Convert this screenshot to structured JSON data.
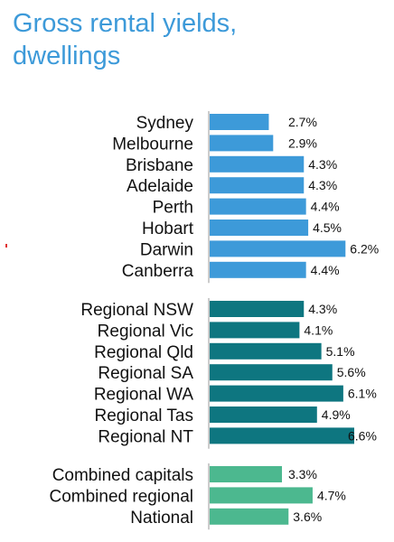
{
  "title_lines": [
    "Gross rental yields,",
    "dwellings"
  ],
  "colors": {
    "title": "#3d9ad9",
    "capitals": "#3d9ad9",
    "regional": "#0e7680",
    "combined": "#4cb88f",
    "axis": "#999999"
  },
  "chart_data": {
    "type": "bar",
    "orientation": "horizontal",
    "title": "Gross rental yields, dwellings",
    "xlabel": "",
    "ylabel": "",
    "unit": "%",
    "xlim": [
      0,
      6.6
    ],
    "grid": false,
    "legend": "none",
    "groups": [
      {
        "color_key": "capitals",
        "categories": [
          "Sydney",
          "Melbourne",
          "Brisbane",
          "Adelaide",
          "Perth",
          "Hobart",
          "Darwin",
          "Canberra"
        ],
        "values": [
          2.7,
          2.9,
          4.3,
          4.3,
          4.4,
          4.5,
          6.2,
          4.4
        ],
        "labels": [
          "2.7%",
          "2.9%",
          "4.3%",
          "4.3%",
          "4.4%",
          "4.5%",
          "6.2%",
          "4.4%"
        ]
      },
      {
        "color_key": "regional",
        "categories": [
          "Regional NSW",
          "Regional Vic",
          "Regional Qld",
          "Regional SA",
          "Regional WA",
          "Regional Tas",
          "Regional NT"
        ],
        "values": [
          4.3,
          4.1,
          5.1,
          5.6,
          6.1,
          4.9,
          6.6
        ],
        "labels": [
          "4.3%",
          "4.1%",
          "5.1%",
          "5.6%",
          "6.1%",
          "4.9%",
          "6.6%"
        ]
      },
      {
        "color_key": "combined",
        "categories": [
          "Combined capitals",
          "Combined regional",
          "National"
        ],
        "values": [
          3.3,
          4.7,
          3.6
        ],
        "labels": [
          "3.3%",
          "4.7%",
          "3.6%"
        ]
      }
    ]
  }
}
